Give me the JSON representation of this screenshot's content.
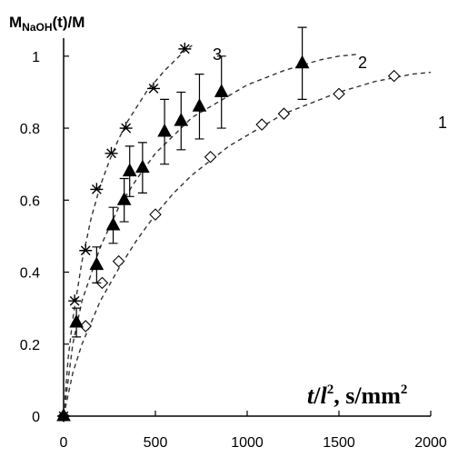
{
  "chart_data": {
    "type": "scatter",
    "ylabel": {
      "prefix": "M",
      "subscript": "NaOH",
      "suffix": "(t)/M"
    },
    "xlabel": {
      "t": "t",
      "slash": "/",
      "l": "l",
      "sup": "2",
      "rest": ", s/mm",
      "sup2": "2"
    },
    "xlim": [
      0,
      2000
    ],
    "ylim": [
      0,
      1.05
    ],
    "xticks": [
      "0",
      "500",
      "1000",
      "1500",
      "2000"
    ],
    "yticks": [
      "0",
      "0.2",
      "0.4",
      "0.6",
      "0.8",
      "1"
    ],
    "grid": false,
    "series": [
      {
        "label": "1",
        "marker": "diamond",
        "x": [
          0,
          120,
          210,
          300,
          500,
          800,
          1080,
          1200,
          1500,
          1800
        ],
        "y": [
          0,
          0.25,
          0.37,
          0.43,
          0.56,
          0.72,
          0.81,
          0.84,
          0.895,
          0.945
        ],
        "fit": {
          "x": [
            0,
            50,
            100,
            200,
            300,
            400,
            500,
            600,
            700,
            800,
            900,
            1000,
            1100,
            1200,
            1300,
            1400,
            1500,
            1600,
            1700,
            1800,
            1900,
            2000
          ],
          "y": [
            0,
            0.12,
            0.2,
            0.32,
            0.41,
            0.49,
            0.56,
            0.62,
            0.67,
            0.71,
            0.75,
            0.78,
            0.81,
            0.84,
            0.86,
            0.88,
            0.9,
            0.915,
            0.93,
            0.94,
            0.95,
            0.955
          ]
        }
      },
      {
        "label": "2",
        "marker": "triangle",
        "x": [
          0,
          70,
          180,
          270,
          330,
          360,
          430,
          550,
          640,
          740,
          860,
          1300
        ],
        "y": [
          0,
          0.26,
          0.42,
          0.53,
          0.6,
          0.68,
          0.69,
          0.79,
          0.82,
          0.86,
          0.9,
          0.98
        ],
        "err": [
          0,
          0.04,
          0.05,
          0.05,
          0.06,
          0.07,
          0.07,
          0.09,
          0.08,
          0.09,
          0.1,
          0.1
        ],
        "fit": {
          "x": [
            0,
            50,
            100,
            200,
            300,
            400,
            500,
            600,
            700,
            800,
            900,
            1000,
            1100,
            1200,
            1300,
            1400,
            1500,
            1600
          ],
          "y": [
            0,
            0.2,
            0.32,
            0.47,
            0.58,
            0.66,
            0.73,
            0.78,
            0.83,
            0.86,
            0.89,
            0.92,
            0.94,
            0.96,
            0.975,
            0.99,
            1.0,
            1.005
          ]
        }
      },
      {
        "label": "3",
        "marker": "asterisk",
        "x": [
          0,
          60,
          120,
          180,
          260,
          340,
          490,
          660
        ],
        "y": [
          0,
          0.32,
          0.46,
          0.63,
          0.73,
          0.8,
          0.91,
          1.02
        ],
        "fit": {
          "x": [
            0,
            25,
            50,
            100,
            150,
            200,
            250,
            300,
            350,
            400,
            450,
            500,
            550,
            600,
            650,
            700
          ],
          "y": [
            0,
            0.16,
            0.27,
            0.43,
            0.55,
            0.64,
            0.71,
            0.77,
            0.82,
            0.86,
            0.9,
            0.93,
            0.96,
            0.985,
            1.01,
            1.03
          ]
        }
      }
    ]
  }
}
